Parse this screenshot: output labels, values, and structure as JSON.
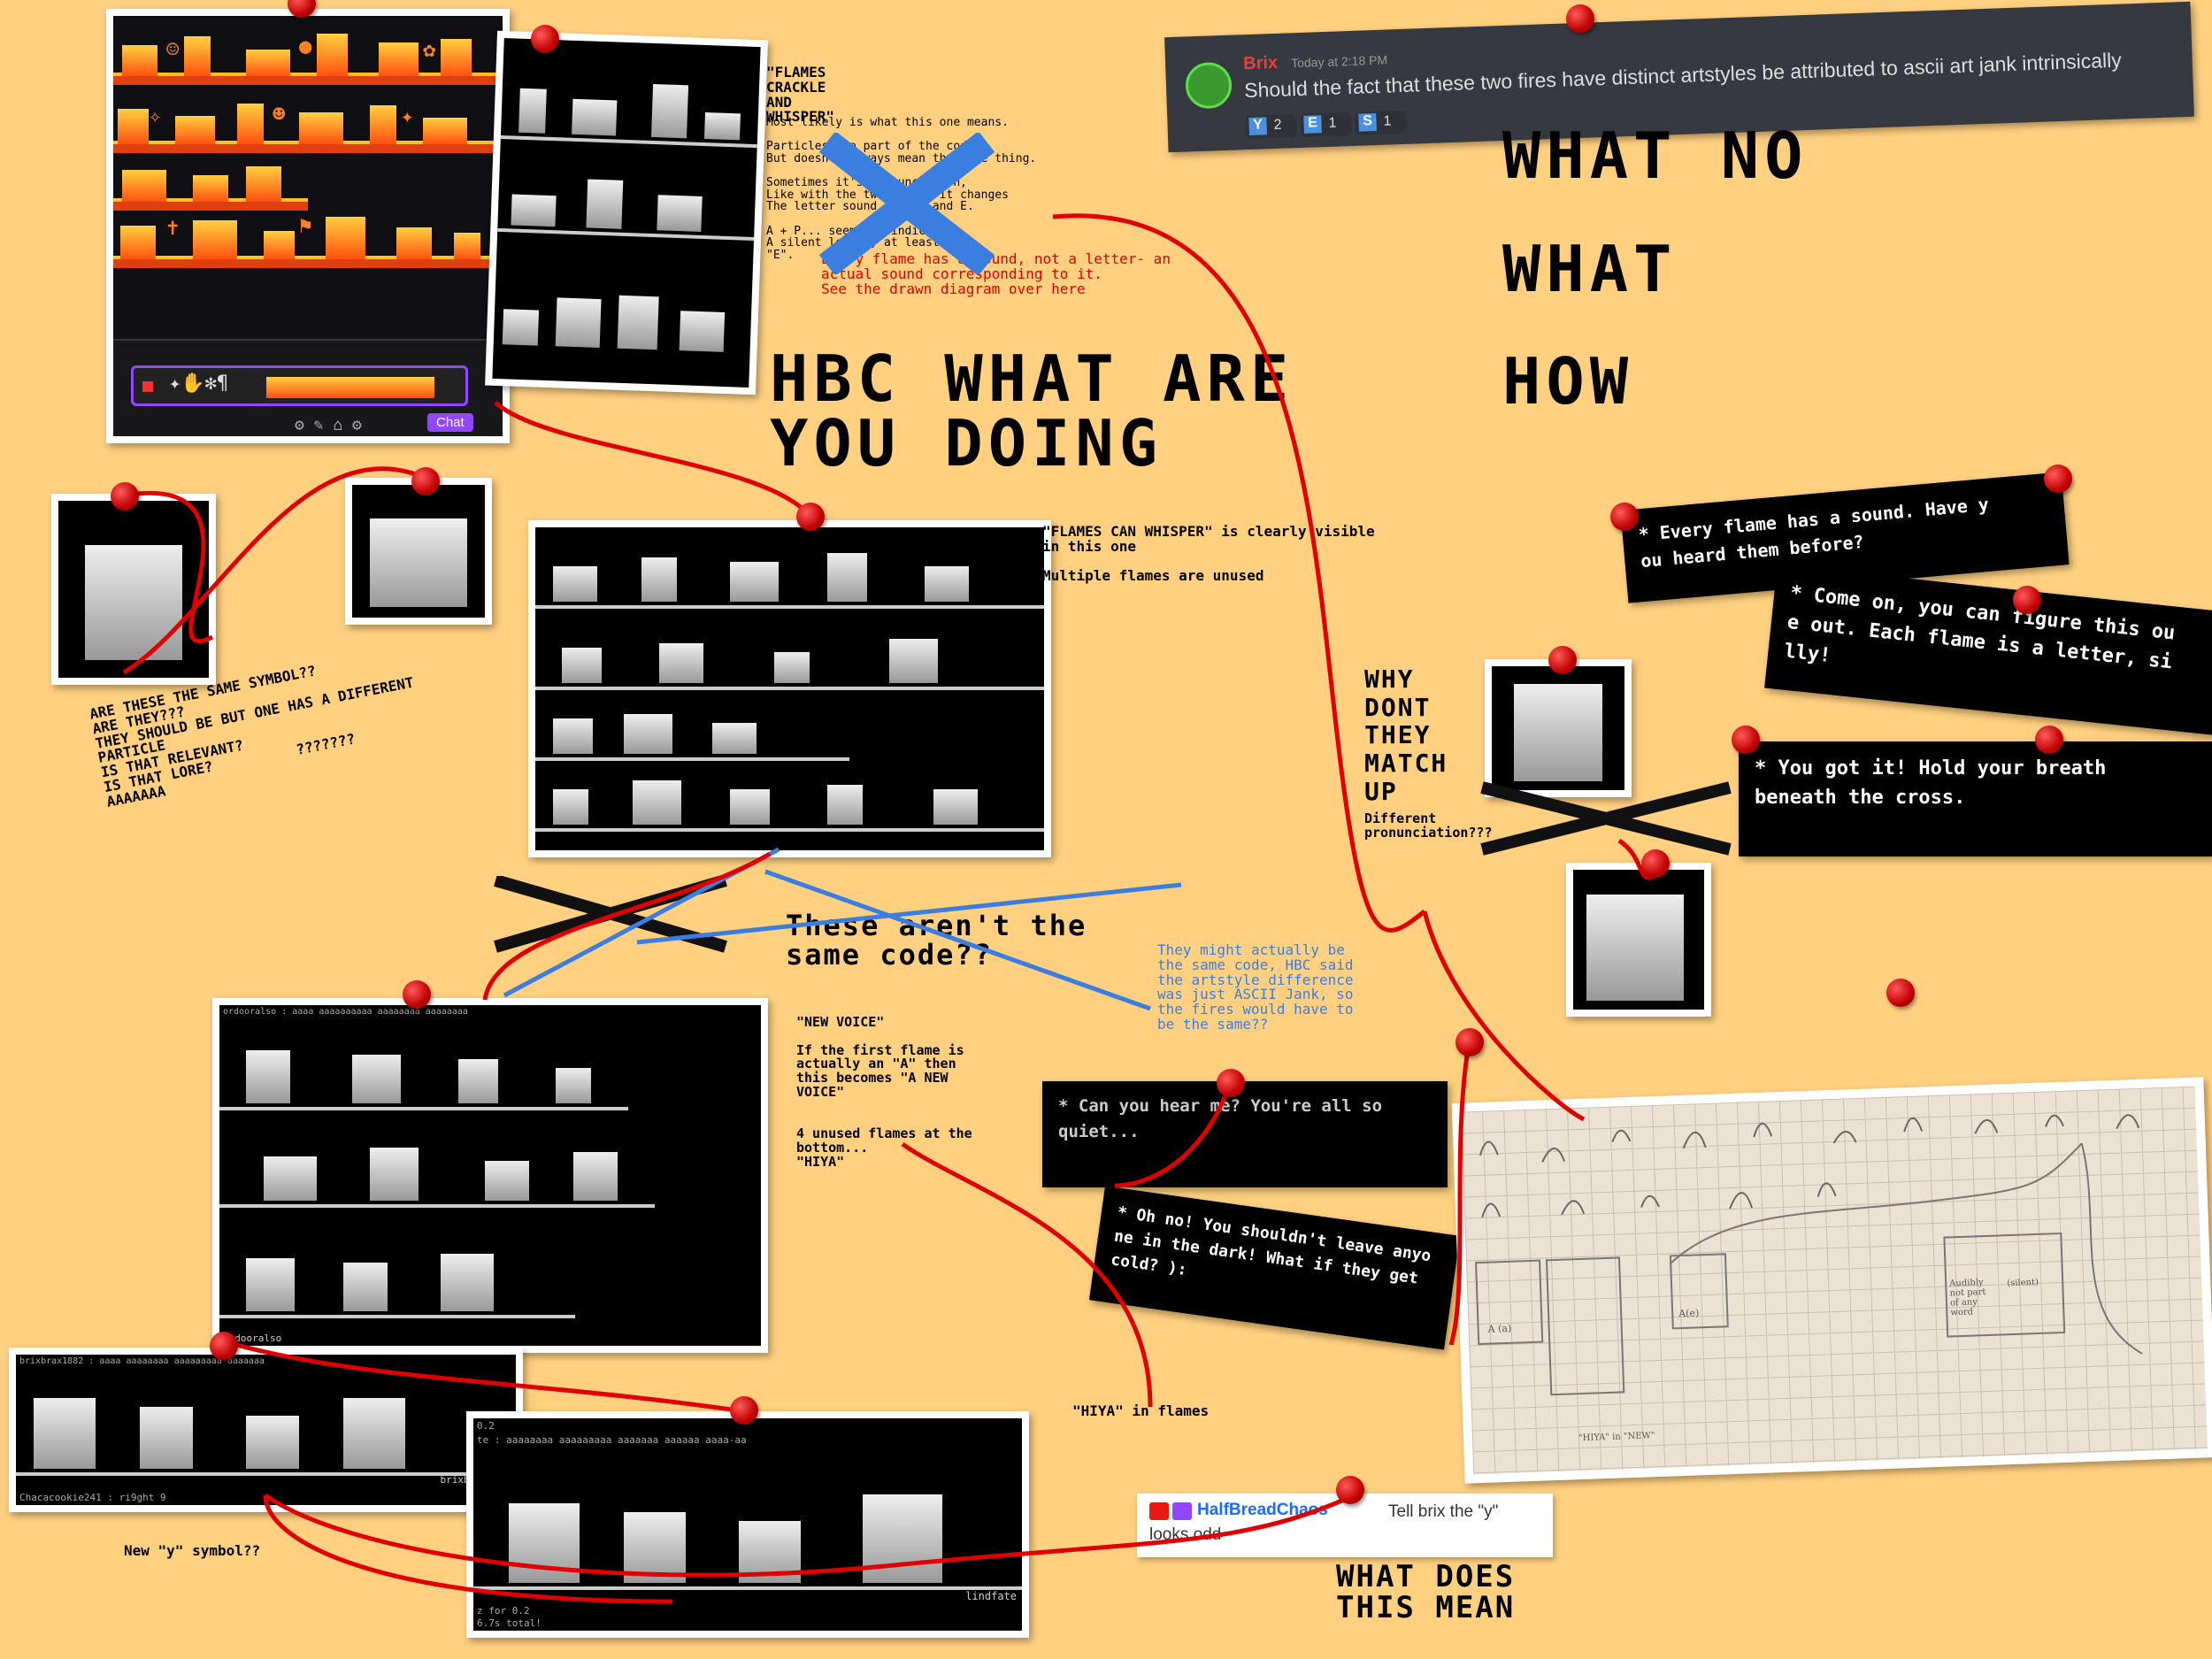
{
  "discord": {
    "username": "Brix",
    "timestamp": "Today at 2:18 PM",
    "message": "Should the fact that these two fires have distinct artstyles be attributed to ascii art jank intrinsically",
    "reactions": [
      {
        "emoji": "Y",
        "count": "2"
      },
      {
        "emoji": "E",
        "count": "1"
      },
      {
        "emoji": "S",
        "count": "1"
      }
    ]
  },
  "headings": {
    "hbc": "HBC WHAT ARE\nYOU DOING",
    "what_no": "WHAT NO",
    "what": "WHAT",
    "how": "HOW",
    "why": "WHY\nDONT\nTHEY\nMATCH\nUP",
    "what_does": "WHAT DOES\nTHIS MEAN",
    "not_same_code": "These aren't the\nsame code??"
  },
  "notes": {
    "flames_crackle": "\"FLAMES\nCRACKLE\nAND\nWHISPER\"",
    "flames_crackle_body": "Most likely is what this one means.\n\nParticles are part of the code,\nBut doesn't always mean the same thing.\n\nSometimes it's pronunciation,\nLike with the two flames it changes\nThe letter sound like L and E.\n\nA + P... seems to indicate\nA silent letter, at least in\n\"E\".",
    "every_flame_sound": "Every flame has a sound, not a letter- an\nactual sound corresponding to it.\nSee the drawn diagram over here",
    "flames_whisper": "\"FLAMES CAN WHISPER\" is clearly visible\nin this one\n\nMultiple flames are unused",
    "same_symbol": "ARE THESE THE SAME SYMBOL??\nARE THEY???\nTHEY SHOULD BE BUT ONE HAS A DIFFERENT\nPARTICLE\nIS THAT RELEVANT?\nIS THAT LORE?          ???????\nAAAAAAA",
    "might_same": "They might actually be\nthe same code, HBC said\nthe artstyle difference\nwas just ASCII Jank, so\nthe fires would have to\nbe the same??",
    "different_pronunciation": "Different\npronunciation???",
    "new_voice": "\"NEW VOICE\"\n\nIf the first flame is\nactually an \"A\" then\nthis becomes \"A NEW\nVOICE\"\n\n\n4 unused flames at the\nbottom...\n\"HIYA\"",
    "hiya_in_flames": "\"HIYA\" in flames",
    "new_y_symbol": "New \"y\" symbol??"
  },
  "dialogs": {
    "every_flame": "* Every flame has a sound. Have y\nou heard them before?",
    "come_on": "* Come on, you can figure this ou\ne out. Each flame is a letter, si\nlly!",
    "you_got_it": "* You got it! Hold your breath\nbeneath the cross.",
    "can_you_hear": "* Can you hear me? You're all so\nquiet...",
    "oh_no": "* Oh no! You shouldn't leave anyo\nne in the dark! What if they get\ncold? ):"
  },
  "twitch": {
    "username": "HalfBreadChaos",
    "message": "Tell brix the \"y\" looks odd"
  },
  "screenshot_labels": {
    "chat": "Chat",
    "orderalso_top": "ordooralso : aaaa aaaaaaaaaa aaaaaaaa aaaaaaaa",
    "orderalso": "ordooralso",
    "brixbrax_top": "brixbrax1882 : aaaa aaaaaaaa aaaaaaaaa aaaaaaa",
    "brixbrax": "brixbrax1882",
    "chaca": "Chacacookie241 : ri9ght 9",
    "lindfate": "lindfate",
    "lindfate_top1": "0.2",
    "lindfate_top2": "te : aaaaaaaa aaaaaaaaa aaaaaaa aaaaaa aaaa-aa",
    "lindfate_bottom1": "z for 0.2",
    "lindfate_bottom2": "6.7s total!"
  },
  "diagram_labels": {
    "a": "A (a)",
    "a_b": "A(e)",
    "silent": "Audibly\nnot part\nof any\nword",
    "silent_sub": "(silent)",
    "new_label": "\"HIYA\" in \"NEW\""
  },
  "colors": {
    "background": "#ffd080",
    "pin": "#d00000",
    "string": "#e00000",
    "note_red": "#e00000",
    "note_blue": "#3a7ee0",
    "discord_bg": "#36393f"
  }
}
